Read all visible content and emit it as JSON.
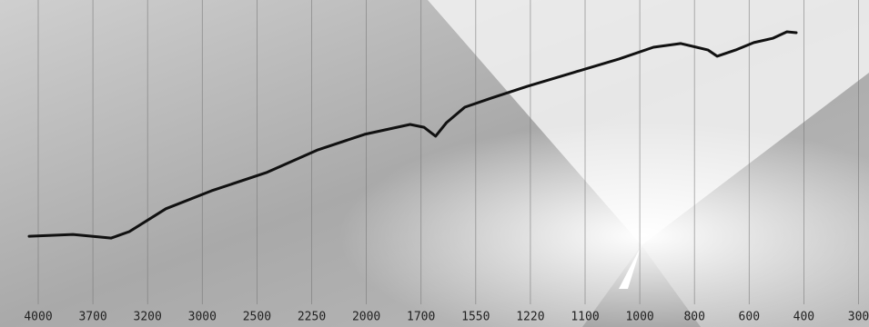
{
  "chart_data": {
    "type": "line",
    "x": [
      4050,
      3810,
      3533,
      3367,
      3133,
      2917,
      2458,
      2221,
      2008,
      1760,
      1692,
      1660,
      1630,
      1580,
      1457,
      1237,
      1126,
      1038,
      950,
      850,
      750,
      717,
      650,
      583,
      514,
      462,
      428
    ],
    "values": [
      23.5,
      24.1,
      22.9,
      25,
      32.4,
      38.2,
      44.1,
      51.5,
      56.5,
      59.7,
      58.8,
      55.9,
      60.3,
      65.3,
      68.2,
      72.1,
      76.5,
      80.9,
      84.7,
      85.9,
      83.8,
      81.8,
      83.8,
      86.2,
      87.6,
      89.7,
      89.4
    ],
    "color": "#111111",
    "ylim": [
      0,
      100
    ],
    "xticks": [
      4000,
      3700,
      3200,
      3000,
      2500,
      2250,
      2000,
      1700,
      1550,
      1220,
      1100,
      1000,
      800,
      600,
      400,
      300
    ],
    "grid": true
  }
}
